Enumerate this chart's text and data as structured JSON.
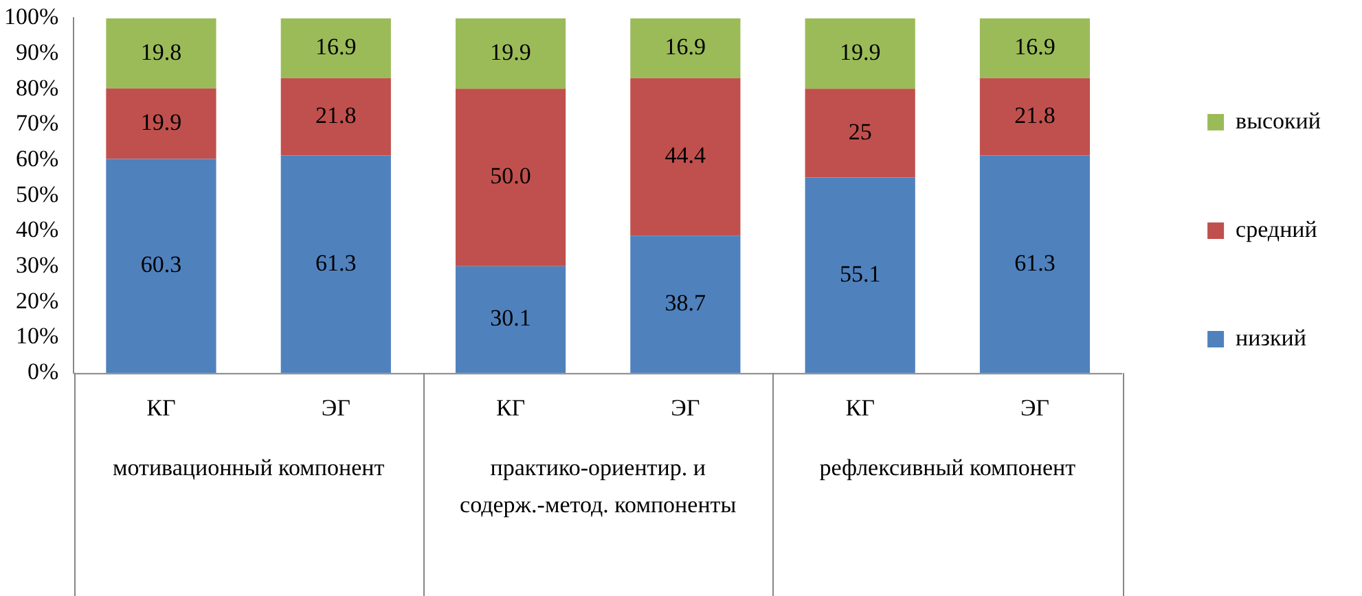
{
  "chart_data": {
    "type": "bar",
    "stacked": true,
    "categories": [
      "КГ",
      "ЭГ",
      "КГ",
      "ЭГ",
      "КГ",
      "ЭГ"
    ],
    "series": [
      {
        "name": "низкий",
        "color": "#4f81bd",
        "values": [
          60.3,
          61.3,
          30.1,
          38.7,
          55.1,
          61.3
        ],
        "value_labels": [
          "60.3",
          "61.3",
          "30.1",
          "38.7",
          "55.1",
          "61.3"
        ]
      },
      {
        "name": "средний",
        "color": "#c0504d",
        "values": [
          19.9,
          21.8,
          50.0,
          44.4,
          25,
          21.8
        ],
        "value_labels": [
          "19.9",
          "21.8",
          "50.0",
          "44.4",
          "25",
          "21.8"
        ]
      },
      {
        "name": "высокий",
        "color": "#9bbb59",
        "values": [
          19.8,
          16.9,
          19.9,
          16.9,
          19.9,
          16.9
        ],
        "value_labels": [
          "19.8",
          "16.9",
          "19.9",
          "16.9",
          "19.9",
          "16.9"
        ]
      }
    ],
    "ylim": [
      0,
      100
    ],
    "yticks": [
      {
        "value": 0,
        "label": "0%"
      },
      {
        "value": 10,
        "label": "10%"
      },
      {
        "value": 20,
        "label": "20%"
      },
      {
        "value": 30,
        "label": "30%"
      },
      {
        "value": 40,
        "label": "40%"
      },
      {
        "value": 50,
        "label": "50%"
      },
      {
        "value": 60,
        "label": "60%"
      },
      {
        "value": 70,
        "label": "70%"
      },
      {
        "value": 80,
        "label": "80%"
      },
      {
        "value": 90,
        "label": "90%"
      },
      {
        "value": 100,
        "label": "100%"
      }
    ],
    "grid": false,
    "legend": "right",
    "annotations": [
      "мотивационный компонент",
      "практико-ориентир. и содерж.-метод. компоненты",
      "рефлексивный компонент"
    ]
  }
}
